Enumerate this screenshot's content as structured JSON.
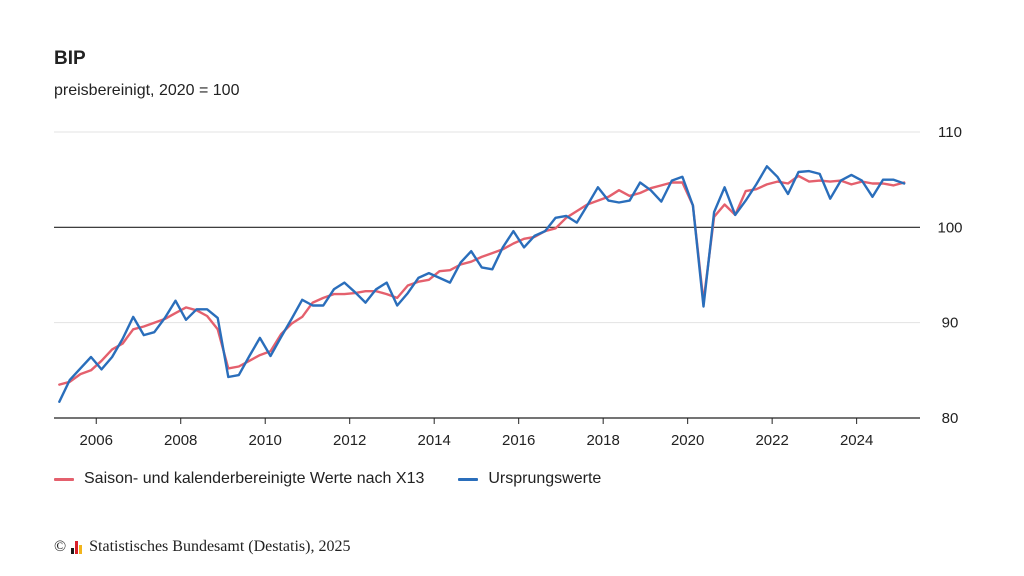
{
  "chart_data": {
    "type": "line",
    "title": "BIP",
    "subtitle": "preisbereinigt, 2020 = 100",
    "xlabel": "",
    "ylabel": "",
    "xlim": [
      2005,
      2025.5
    ],
    "ylim": [
      80,
      110
    ],
    "y_ticks": [
      80,
      90,
      100,
      110
    ],
    "x_ticks": [
      2006,
      2008,
      2010,
      2012,
      2014,
      2016,
      2018,
      2020,
      2022,
      2024
    ],
    "reference_line": 100,
    "grid": true,
    "legend_position": "bottom-left",
    "series": [
      {
        "name": "Saison- und kalenderbereinigte Werte nach X13",
        "color": "#e4606d",
        "x": [
          2005.125,
          2005.375,
          2005.625,
          2005.875,
          2006.125,
          2006.375,
          2006.625,
          2006.875,
          2007.125,
          2007.375,
          2007.625,
          2007.875,
          2008.125,
          2008.375,
          2008.625,
          2008.875,
          2009.125,
          2009.375,
          2009.625,
          2009.875,
          2010.125,
          2010.375,
          2010.625,
          2010.875,
          2011.125,
          2011.375,
          2011.625,
          2011.875,
          2012.125,
          2012.375,
          2012.625,
          2012.875,
          2013.125,
          2013.375,
          2013.625,
          2013.875,
          2014.125,
          2014.375,
          2014.625,
          2014.875,
          2015.125,
          2015.375,
          2015.625,
          2015.875,
          2016.125,
          2016.375,
          2016.625,
          2016.875,
          2017.125,
          2017.375,
          2017.625,
          2017.875,
          2018.125,
          2018.375,
          2018.625,
          2018.875,
          2019.125,
          2019.375,
          2019.625,
          2019.875,
          2020.125,
          2020.375,
          2020.625,
          2020.875,
          2021.125,
          2021.375,
          2021.625,
          2021.875,
          2022.125,
          2022.375,
          2022.625,
          2022.875,
          2023.125,
          2023.375,
          2023.625,
          2023.875,
          2024.125,
          2024.375,
          2024.625,
          2024.875,
          2025.125
        ],
        "values": [
          83.5,
          83.8,
          84.6,
          85.0,
          86.0,
          87.2,
          87.8,
          89.3,
          89.6,
          90.0,
          90.4,
          91.0,
          91.6,
          91.3,
          90.7,
          89.3,
          85.2,
          85.4,
          86.0,
          86.6,
          87.0,
          88.8,
          89.9,
          90.6,
          92.1,
          92.6,
          93.0,
          93.0,
          93.1,
          93.3,
          93.3,
          93.0,
          92.6,
          93.9,
          94.3,
          94.5,
          95.4,
          95.5,
          96.1,
          96.4,
          96.9,
          97.3,
          97.7,
          98.3,
          98.8,
          99.0,
          99.6,
          99.9,
          101.0,
          101.7,
          102.4,
          102.8,
          103.2,
          103.9,
          103.3,
          103.6,
          104.1,
          104.4,
          104.7,
          104.7,
          102.3,
          92.2,
          101.1,
          102.4,
          101.3,
          103.8,
          104.0,
          104.5,
          104.8,
          104.6,
          105.4,
          104.8,
          104.9,
          104.8,
          104.9,
          104.5,
          104.8,
          104.6,
          104.6,
          104.4,
          104.7
        ]
      },
      {
        "name": "Ursprungswerte",
        "color": "#2a6ebb",
        "x": [
          2005.125,
          2005.375,
          2005.625,
          2005.875,
          2006.125,
          2006.375,
          2006.625,
          2006.875,
          2007.125,
          2007.375,
          2007.625,
          2007.875,
          2008.125,
          2008.375,
          2008.625,
          2008.875,
          2009.125,
          2009.375,
          2009.625,
          2009.875,
          2010.125,
          2010.375,
          2010.625,
          2010.875,
          2011.125,
          2011.375,
          2011.625,
          2011.875,
          2012.125,
          2012.375,
          2012.625,
          2012.875,
          2013.125,
          2013.375,
          2013.625,
          2013.875,
          2014.125,
          2014.375,
          2014.625,
          2014.875,
          2015.125,
          2015.375,
          2015.625,
          2015.875,
          2016.125,
          2016.375,
          2016.625,
          2016.875,
          2017.125,
          2017.375,
          2017.625,
          2017.875,
          2018.125,
          2018.375,
          2018.625,
          2018.875,
          2019.125,
          2019.375,
          2019.625,
          2019.875,
          2020.125,
          2020.375,
          2020.625,
          2020.875,
          2021.125,
          2021.375,
          2021.625,
          2021.875,
          2022.125,
          2022.375,
          2022.625,
          2022.875,
          2023.125,
          2023.375,
          2023.625,
          2023.875,
          2024.125,
          2024.375,
          2024.625,
          2024.875,
          2025.125
        ],
        "values": [
          81.7,
          84.0,
          85.2,
          86.4,
          85.1,
          86.4,
          88.3,
          90.6,
          88.7,
          89.0,
          90.5,
          92.3,
          90.3,
          91.4,
          91.4,
          90.5,
          84.3,
          84.5,
          86.5,
          88.4,
          86.5,
          88.5,
          90.4,
          92.4,
          91.8,
          91.8,
          93.5,
          94.2,
          93.2,
          92.1,
          93.5,
          94.2,
          91.8,
          93.1,
          94.7,
          95.2,
          94.7,
          94.2,
          96.3,
          97.5,
          95.8,
          95.6,
          97.9,
          99.6,
          97.9,
          99.1,
          99.6,
          101.0,
          101.2,
          100.5,
          102.3,
          104.2,
          102.8,
          102.6,
          102.8,
          104.7,
          103.9,
          102.7,
          104.9,
          105.3,
          102.3,
          91.7,
          101.6,
          104.2,
          101.3,
          102.8,
          104.5,
          106.4,
          105.3,
          103.5,
          105.8,
          105.9,
          105.6,
          103.0,
          104.9,
          105.5,
          104.9,
          103.2,
          105.0,
          105.0,
          104.6
        ]
      }
    ]
  },
  "footer": {
    "copyright_symbol": "©",
    "source": "Statistisches Bundesamt (Destatis), 2025",
    "logo_colors": [
      "#1a1a1a",
      "#d9202a",
      "#f2b51c"
    ]
  }
}
